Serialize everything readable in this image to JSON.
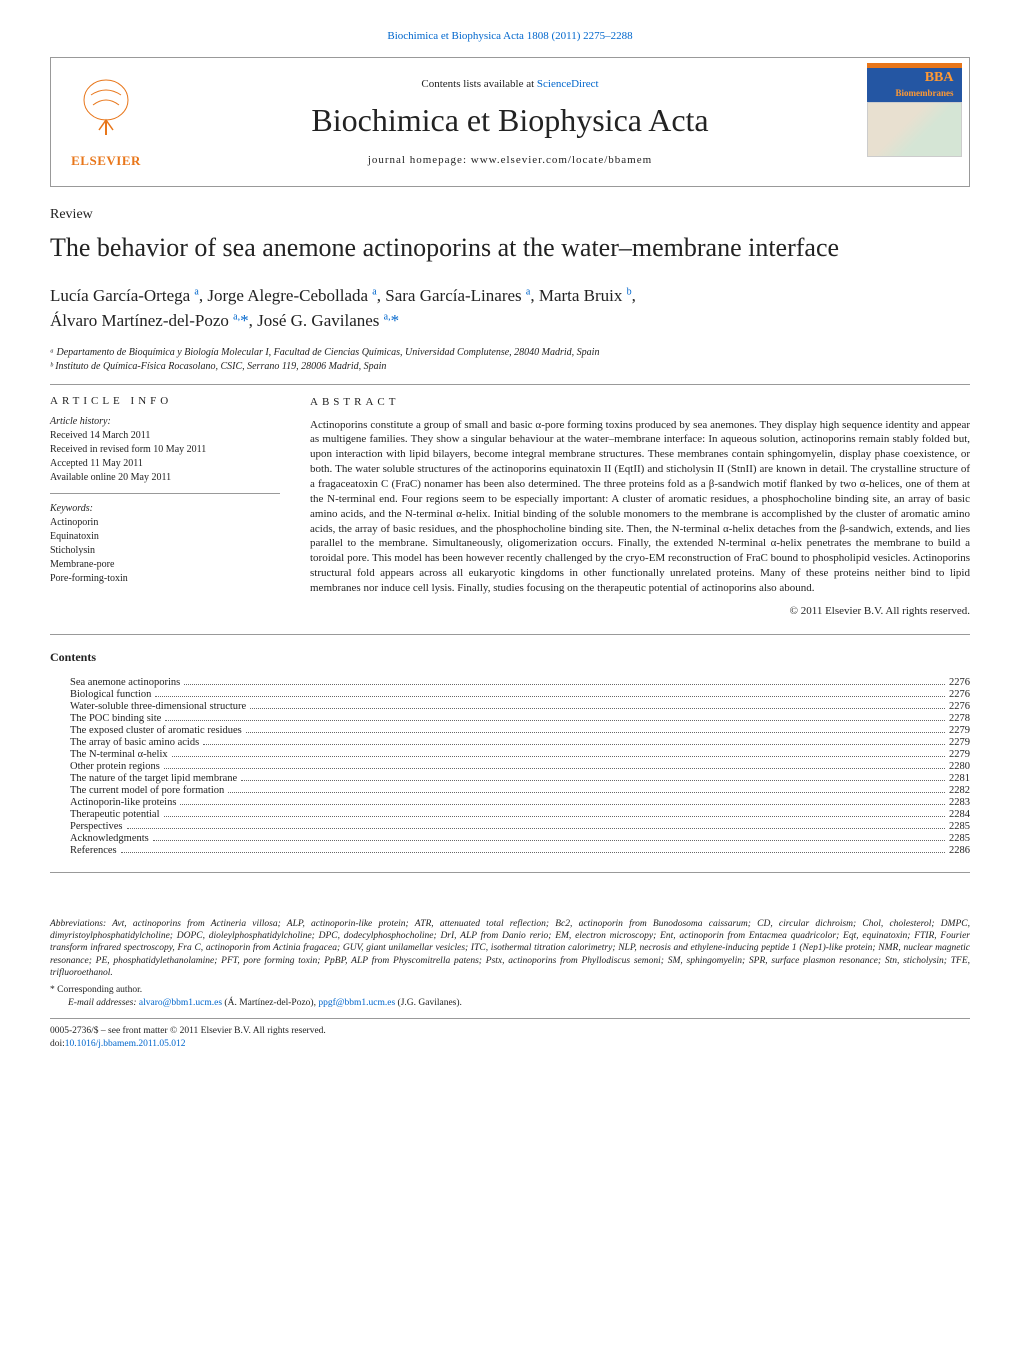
{
  "header": {
    "citation_link": "Biochimica et Biophysica Acta 1808 (2011) 2275–2288",
    "contents_at": "Contents lists available at",
    "sciencedirect": "ScienceDirect",
    "journal_name": "Biochimica et Biophysica Acta",
    "homepage_label": "journal homepage: www.elsevier.com/locate/bbamem",
    "elsevier": "ELSEVIER",
    "cover_title": "BBA",
    "cover_subtitle": "Biomembranes"
  },
  "article": {
    "type": "Review",
    "title": "The behavior of sea anemone actinoporins at the water–membrane interface",
    "authors_line1": "Lucía García-Ortega ª, Jorge Alegre-Cebollada ª, Sara García-Linares ª, Marta Bruix ᵇ,",
    "authors_line2": "Álvaro Martínez-del-Pozo ª·*, José G. Gavilanes ª·*",
    "affil_a": "ᵃ Departamento de Bioquímica y Biología Molecular I, Facultad de Ciencias Químicas, Universidad Complutense, 28040 Madrid, Spain",
    "affil_b": "ᵇ Instituto de Química-Física Rocasolano, CSIC, Serrano 119, 28006 Madrid, Spain"
  },
  "info": {
    "heading": "ARTICLE INFO",
    "history_h": "Article history:",
    "received": "Received 14 March 2011",
    "revised": "Received in revised form 10 May 2011",
    "accepted": "Accepted 11 May 2011",
    "online": "Available online 20 May 2011",
    "keywords_h": "Keywords:",
    "kw1": "Actinoporin",
    "kw2": "Equinatoxin",
    "kw3": "Sticholysin",
    "kw4": "Membrane-pore",
    "kw5": "Pore-forming-toxin"
  },
  "abstract": {
    "heading": "ABSTRACT",
    "text": "Actinoporins constitute a group of small and basic α-pore forming toxins produced by sea anemones. They display high sequence identity and appear as multigene families. They show a singular behaviour at the water–membrane interface: In aqueous solution, actinoporins remain stably folded but, upon interaction with lipid bilayers, become integral membrane structures. These membranes contain sphingomyelin, display phase coexistence, or both. The water soluble structures of the actinoporins equinatoxin II (EqtII) and sticholysin II (StnII) are known in detail. The crystalline structure of a fragaceatoxin C (FraC) nonamer has been also determined. The three proteins fold as a β-sandwich motif flanked by two α-helices, one of them at the N-terminal end. Four regions seem to be especially important: A cluster of aromatic residues, a phosphocholine binding site, an array of basic amino acids, and the N-terminal α-helix. Initial binding of the soluble monomers to the membrane is accomplished by the cluster of aromatic amino acids, the array of basic residues, and the phosphocholine binding site. Then, the N-terminal α-helix detaches from the β-sandwich, extends, and lies parallel to the membrane. Simultaneously, oligomerization occurs. Finally, the extended N-terminal α-helix penetrates the membrane to build a toroidal pore. This model has been however recently challenged by the cryo-EM reconstruction of FraC bound to phospholipid vesicles. Actinoporins structural fold appears across all eukaryotic kingdoms in other functionally unrelated proteins. Many of these proteins neither bind to lipid membranes nor induce cell lysis. Finally, studies focusing on the therapeutic potential of actinoporins also abound.",
    "copyright": "© 2011 Elsevier B.V. All rights reserved."
  },
  "contents": {
    "heading": "Contents",
    "items": [
      {
        "label": "Sea anemone actinoporins",
        "page": "2276"
      },
      {
        "label": "Biological function",
        "page": "2276"
      },
      {
        "label": "Water-soluble three-dimensional structure",
        "page": "2276"
      },
      {
        "label": "The POC binding site",
        "page": "2278"
      },
      {
        "label": "The exposed cluster of aromatic residues",
        "page": "2279"
      },
      {
        "label": "The array of basic amino acids",
        "page": "2279"
      },
      {
        "label": "The N-terminal α-helix",
        "page": "2279"
      },
      {
        "label": "Other protein regions",
        "page": "2280"
      },
      {
        "label": "The nature of the target lipid membrane",
        "page": "2281"
      },
      {
        "label": "The current model of pore formation",
        "page": "2282"
      },
      {
        "label": "Actinoporin-like proteins",
        "page": "2283"
      },
      {
        "label": "Therapeutic potential",
        "page": "2284"
      },
      {
        "label": "Perspectives",
        "page": "2285"
      },
      {
        "label": "Acknowledgments",
        "page": "2285"
      },
      {
        "label": "References",
        "page": "2286"
      }
    ]
  },
  "abbrev": {
    "label": "Abbreviations:",
    "text": " Avt, actinoporins from Actineria villosa; ALP, actinoporin-like protein; ATR, attenuated total reflection; Bc2, actinoporin from Bunodosoma caissarum; CD, circular dichroism; Chol, cholesterol; DMPC, dimyristoylphosphatidylcholine; DOPC, dioleylphosphatidylcholine; DPC, dodecylphosphocholine; DrI, ALP from Danio rerio; EM, electron microscopy; Ent, actinoporin from Entacmea quadricolor; Eqt, equinatoxin; FTIR, Fourier transform infrared spectroscopy, Fra C, actinoporin from Actinia fragacea; GUV, giant unilamellar vesicles; ITC, isothermal titration calorimetry; NLP, necrosis and ethylene-inducing peptide 1 (Nep1)-like protein; NMR, nuclear magnetic resonance; PE, phosphatidylethanolamine; PFT, pore forming toxin; PpBP, ALP from Physcomitrella patens; Pstx, actinoporins from Phyllodiscus semoni; SM, sphingomyelin; SPR, surface plasmon resonance; Stn, sticholysin; TFE, trifluoroethanol."
  },
  "footer": {
    "corr": "* Corresponding author.",
    "email_label": "E-mail addresses:",
    "email1": "alvaro@bbm1.ucm.es",
    "email1_name": " (Á. Martínez-del-Pozo), ",
    "email2": "ppgf@bbm1.ucm.es",
    "email2_name": " (J.G. Gavilanes).",
    "issn": "0005-2736/$ – see front matter © 2011 Elsevier B.V. All rights reserved.",
    "doi_label": "doi:",
    "doi": "10.1016/j.bbamem.2011.05.012"
  },
  "colors": {
    "link": "#0066cc",
    "elsevier_orange": "#e8761a",
    "border": "#999999",
    "text": "#222222",
    "cover_blue": "#2456a3",
    "cover_orange": "#ff9933"
  },
  "typography": {
    "title_size": 26,
    "journal_size": 32,
    "body_size": 11,
    "small_size": 10,
    "footnote_size": 9.5
  }
}
